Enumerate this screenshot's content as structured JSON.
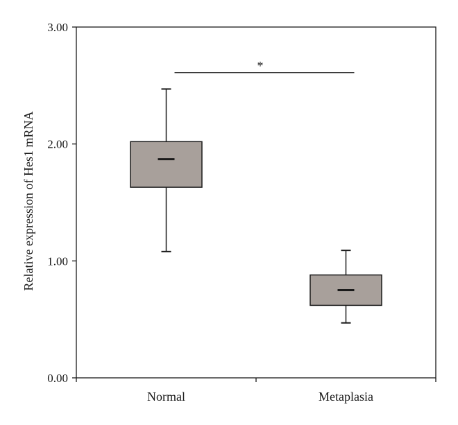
{
  "chart_data": {
    "type": "box",
    "title": "",
    "xlabel": "",
    "ylabel": "Relative expression of Hes1 mRNA",
    "ylim": [
      0,
      3
    ],
    "yticks": [
      0,
      1,
      2,
      3
    ],
    "ytick_labels": [
      "0.00",
      "1.00",
      "2.00",
      "3.00"
    ],
    "categories": [
      "Normal",
      "Metaplasia"
    ],
    "boxes": [
      {
        "category": "Normal",
        "min": 1.08,
        "q1": 1.63,
        "median": 1.87,
        "q3": 2.02,
        "max": 2.47
      },
      {
        "category": "Metaplasia",
        "min": 0.47,
        "q1": 0.62,
        "median": 0.75,
        "q3": 0.88,
        "max": 1.09
      }
    ],
    "significance": {
      "from": "Normal",
      "to": "Metaplasia",
      "y": 2.61,
      "label": "*"
    },
    "box_color": "#a8a09b",
    "line_color": "#1a1a1a",
    "grid": false,
    "legend": "none"
  }
}
